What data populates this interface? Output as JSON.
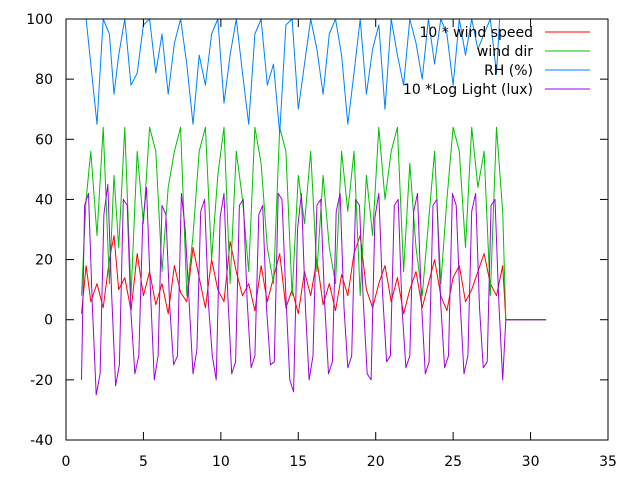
{
  "chart_data": {
    "type": "line",
    "xlim": [
      0,
      35
    ],
    "ylim": [
      -40,
      100
    ],
    "x_ticks": [
      0,
      5,
      10,
      15,
      20,
      25,
      30,
      35
    ],
    "y_ticks": [
      -40,
      -20,
      0,
      20,
      40,
      60,
      80,
      100
    ],
    "grid": false,
    "legend_position": "top-right",
    "title": "",
    "xlabel": "",
    "ylabel": "",
    "series": [
      {
        "name": "10 * wind speed",
        "color": "#ff0000",
        "pattern": "fluctuating low values, mostly 0-20 with peaks near 25-30 around days 3, 9, 11, 19; ends flat at 0 from ~28.4 to 31",
        "x": [
          1.0,
          1.3,
          1.6,
          2.0,
          2.4,
          2.8,
          3.1,
          3.4,
          3.8,
          4.2,
          4.6,
          5.0,
          5.4,
          5.8,
          6.2,
          6.6,
          7.0,
          7.4,
          7.8,
          8.2,
          8.6,
          9.0,
          9.4,
          9.8,
          10.2,
          10.6,
          11.0,
          11.4,
          11.8,
          12.2,
          12.6,
          13.0,
          13.4,
          13.8,
          14.2,
          14.6,
          15.0,
          15.4,
          15.8,
          16.2,
          16.6,
          17.0,
          17.4,
          17.8,
          18.2,
          18.6,
          19.0,
          19.4,
          19.8,
          20.2,
          20.6,
          21.0,
          21.4,
          21.8,
          22.2,
          22.6,
          23.0,
          23.4,
          23.8,
          24.2,
          24.6,
          25.0,
          25.4,
          25.8,
          26.2,
          26.6,
          27.0,
          27.4,
          27.8,
          28.2,
          28.4,
          31.0
        ],
        "values": [
          2,
          18,
          6,
          12,
          4,
          20,
          28,
          10,
          14,
          3,
          22,
          8,
          16,
          5,
          12,
          2,
          18,
          9,
          6,
          24,
          14,
          4,
          20,
          10,
          6,
          26,
          16,
          8,
          12,
          3,
          18,
          6,
          14,
          22,
          4,
          10,
          2,
          16,
          8,
          20,
          5,
          12,
          3,
          15,
          8,
          22,
          28,
          10,
          4,
          12,
          18,
          6,
          14,
          2,
          10,
          16,
          4,
          12,
          20,
          8,
          3,
          14,
          18,
          6,
          10,
          16,
          22,
          12,
          8,
          18,
          0,
          0
        ]
      },
      {
        "name": "wind dir",
        "color": "#00c000",
        "pattern": "stepped values switching between ~8 and ~64 with many plateaus; flat at 0 after ~28.4",
        "x": [
          1.0,
          1.3,
          1.6,
          2.0,
          2.4,
          2.8,
          3.1,
          3.4,
          3.8,
          4.2,
          4.6,
          5.0,
          5.4,
          5.8,
          6.2,
          6.6,
          7.0,
          7.4,
          7.8,
          8.2,
          8.6,
          9.0,
          9.4,
          9.8,
          10.2,
          10.6,
          11.0,
          11.4,
          11.8,
          12.2,
          12.6,
          13.0,
          13.4,
          13.8,
          14.2,
          14.6,
          15.0,
          15.4,
          15.8,
          16.2,
          16.6,
          17.0,
          17.4,
          17.8,
          18.2,
          18.6,
          19.0,
          19.4,
          19.8,
          20.2,
          20.6,
          21.0,
          21.4,
          21.8,
          22.2,
          22.6,
          23.0,
          23.4,
          23.8,
          24.2,
          24.6,
          25.0,
          25.4,
          25.8,
          26.2,
          26.6,
          27.0,
          27.4,
          27.8,
          28.2,
          28.4,
          31.0
        ],
        "values": [
          8,
          40,
          56,
          28,
          64,
          12,
          48,
          24,
          64,
          8,
          56,
          32,
          64,
          56,
          16,
          44,
          56,
          64,
          8,
          28,
          56,
          64,
          20,
          48,
          64,
          12,
          56,
          40,
          16,
          64,
          52,
          24,
          12,
          64,
          56,
          8,
          48,
          32,
          56,
          16,
          48,
          24,
          12,
          56,
          36,
          56,
          8,
          48,
          28,
          64,
          40,
          56,
          64,
          16,
          52,
          24,
          8,
          32,
          56,
          12,
          40,
          64,
          56,
          24,
          64,
          44,
          56,
          8,
          64,
          36,
          0,
          0
        ]
      },
      {
        "name": "RH (%)",
        "color": "#0080ff",
        "pattern": "humidity mostly 60-100, frequently saturating at 100; only present until ~28",
        "x": [
          1.0,
          1.3,
          1.6,
          2.0,
          2.4,
          2.8,
          3.1,
          3.4,
          3.8,
          4.2,
          4.6,
          5.0,
          5.4,
          5.8,
          6.2,
          6.6,
          7.0,
          7.4,
          7.8,
          8.2,
          8.6,
          9.0,
          9.4,
          9.8,
          10.2,
          10.6,
          11.0,
          11.4,
          11.8,
          12.2,
          12.6,
          13.0,
          13.4,
          13.8,
          14.2,
          14.6,
          15.0,
          15.4,
          15.8,
          16.2,
          16.6,
          17.0,
          17.4,
          17.8,
          18.2,
          18.6,
          19.0,
          19.4,
          19.8,
          20.2,
          20.6,
          21.0,
          21.4,
          21.8,
          22.2,
          22.6,
          23.0,
          23.4,
          23.8,
          24.2,
          24.6,
          25.0,
          25.4,
          25.8,
          26.2,
          26.6,
          27.0,
          27.4,
          27.8,
          28.0
        ],
        "values": [
          100,
          100,
          85,
          65,
          100,
          95,
          75,
          88,
          100,
          78,
          82,
          98,
          100,
          82,
          95,
          75,
          92,
          100,
          85,
          65,
          88,
          78,
          95,
          100,
          72,
          88,
          100,
          82,
          65,
          95,
          100,
          78,
          85,
          62,
          98,
          100,
          70,
          85,
          100,
          90,
          75,
          95,
          100,
          88,
          65,
          82,
          100,
          75,
          90,
          98,
          70,
          100,
          88,
          78,
          100,
          92,
          80,
          100,
          85,
          100,
          95,
          78,
          100,
          88,
          100,
          90,
          95,
          100,
          82,
          100
        ]
      },
      {
        "name": "10 *Log Light (lux)",
        "color": "#a000e0",
        "pattern": "daily cycle: night values around -10 to -25, daytime peaks around 30-45",
        "x": [
          1.0,
          1.2,
          1.45,
          1.7,
          1.95,
          2.2,
          2.45,
          2.7,
          2.95,
          3.2,
          3.45,
          3.7,
          3.95,
          4.2,
          4.45,
          4.7,
          4.95,
          5.2,
          5.45,
          5.7,
          5.95,
          6.2,
          6.45,
          6.7,
          6.95,
          7.2,
          7.45,
          7.7,
          7.95,
          8.2,
          8.45,
          8.7,
          8.95,
          9.2,
          9.45,
          9.7,
          9.95,
          10.2,
          10.45,
          10.7,
          10.95,
          11.2,
          11.45,
          11.7,
          11.95,
          12.2,
          12.45,
          12.7,
          12.95,
          13.2,
          13.45,
          13.7,
          13.95,
          14.2,
          14.45,
          14.7,
          14.95,
          15.2,
          15.45,
          15.7,
          15.95,
          16.2,
          16.45,
          16.7,
          16.95,
          17.2,
          17.45,
          17.7,
          17.95,
          18.2,
          18.45,
          18.7,
          18.95,
          19.2,
          19.45,
          19.7,
          19.95,
          20.2,
          20.45,
          20.7,
          20.95,
          21.2,
          21.45,
          21.7,
          21.95,
          22.2,
          22.45,
          22.7,
          22.95,
          23.2,
          23.45,
          23.7,
          23.95,
          24.2,
          24.45,
          24.7,
          24.95,
          25.2,
          25.45,
          25.7,
          25.95,
          26.2,
          26.45,
          26.7,
          26.95,
          27.2,
          27.45,
          27.7,
          27.95,
          28.2,
          28.4,
          31.0
        ],
        "values": [
          -20,
          38,
          42,
          5,
          -25,
          -18,
          35,
          45,
          8,
          -22,
          -15,
          40,
          38,
          2,
          -18,
          -12,
          32,
          44,
          10,
          -20,
          -12,
          38,
          35,
          4,
          -15,
          -12,
          42,
          30,
          6,
          -18,
          -10,
          36,
          40,
          5,
          -12,
          -20,
          34,
          42,
          8,
          -18,
          -14,
          38,
          40,
          6,
          -16,
          -12,
          35,
          38,
          4,
          -15,
          -14,
          42,
          40,
          8,
          -20,
          -24,
          30,
          42,
          5,
          -20,
          -12,
          38,
          40,
          6,
          -18,
          -14,
          36,
          42,
          4,
          -16,
          -12,
          40,
          38,
          6,
          -18,
          -20,
          34,
          42,
          8,
          -14,
          -12,
          38,
          40,
          4,
          -16,
          -12,
          36,
          42,
          6,
          -18,
          -14,
          38,
          40,
          5,
          -16,
          -12,
          42,
          38,
          6,
          -18,
          -12,
          36,
          42,
          4,
          -16,
          -14,
          38,
          40,
          6,
          -20,
          0,
          0
        ]
      }
    ]
  }
}
